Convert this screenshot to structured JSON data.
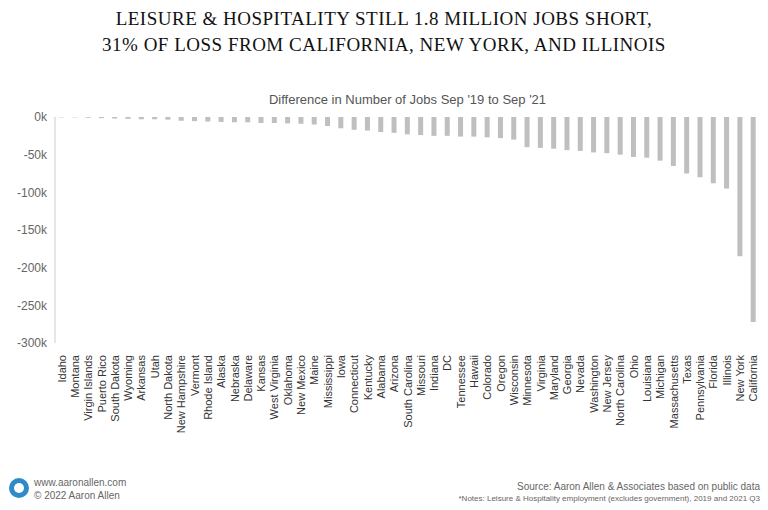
{
  "chart_data": {
    "type": "bar",
    "title": "LEISURE & HOSPITALITY STILL 1.8 MILLION JOBS SHORT,\n31% OF LOSS FROM CALIFORNIA, NEW YORK, AND ILLINOIS",
    "subtitle": "Difference in Number of Jobs Sep '19 to Sep '21",
    "annotations": [
      "www.aaronallen.com",
      "© 2022 Aaron Allen",
      "Source: Aaron Allen & Associates based on public data",
      "*Notes: Leisure & Hospitality employment (excludes government), 2019 and 2021 Q3"
    ],
    "categories": [
      "Idaho",
      "Montana",
      "Virgin Islands",
      "Puerto Rico",
      "South Dakota",
      "Wyoming",
      "Arkansas",
      "Utah",
      "North Dakota",
      "New Hampshire",
      "Vermont",
      "Rhode Island",
      "Alaska",
      "Nebraska",
      "Delaware",
      "Kansas",
      "West Virginia",
      "Oklahoma",
      "New Mexico",
      "Maine",
      "Mississippi",
      "Iowa",
      "Connecticut",
      "Kentucky",
      "Alabama",
      "Arizona",
      "South Carolina",
      "Missouri",
      "Indiana",
      "DC",
      "Tennessee",
      "Hawaii",
      "Colorado",
      "Oregon",
      "Wisconsin",
      "Minnesota",
      "Virginia",
      "Maryland",
      "Georgia",
      "Nevada",
      "Washington",
      "New Jersey",
      "North Carolina",
      "Ohio",
      "Louisiana",
      "Michigan",
      "Massachusetts",
      "Texas",
      "Pennsylvania",
      "Florida",
      "Illinois",
      "New York",
      "California"
    ],
    "values": [
      -500,
      -500,
      -1000,
      -1500,
      -2000,
      -2500,
      -3000,
      -3000,
      -3500,
      -5000,
      -5500,
      -6000,
      -6500,
      -7000,
      -7000,
      -8000,
      -8000,
      -8500,
      -9000,
      -10000,
      -12000,
      -15000,
      -17000,
      -18000,
      -20000,
      -21000,
      -23000,
      -24000,
      -25000,
      -25000,
      -26000,
      -26000,
      -27000,
      -28000,
      -30000,
      -40000,
      -41000,
      -42000,
      -44000,
      -45000,
      -47000,
      -48000,
      -50000,
      -53000,
      -54000,
      -58000,
      -65000,
      -75000,
      -80000,
      -88000,
      -95000,
      -185000,
      -272000
    ],
    "color": "#bfbfbf",
    "ylim": [
      -300000,
      0
    ],
    "yticks": [
      {
        "value": -300000,
        "label": "-300k"
      },
      {
        "value": -250000,
        "label": "-250k"
      },
      {
        "value": -200000,
        "label": "-200k"
      },
      {
        "value": -150000,
        "label": "-150k"
      },
      {
        "value": -100000,
        "label": "-100k"
      },
      {
        "value": -50000,
        "label": "-50k"
      },
      {
        "value": 0,
        "label": "0k"
      }
    ],
    "grid": false
  }
}
